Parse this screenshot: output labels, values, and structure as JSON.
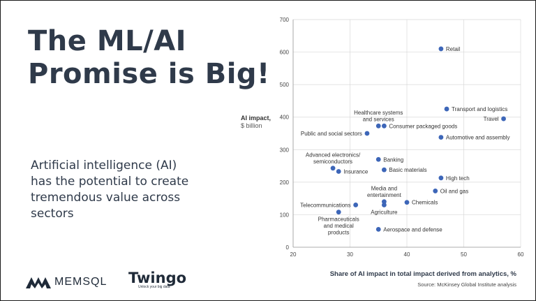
{
  "slide": {
    "title_lines": [
      "The ML/AI",
      "Promise is Big!"
    ],
    "body_lines": [
      "Artificial intelligence (AI)",
      "has the potential to create",
      "tremendous value across",
      "sectors"
    ],
    "source": "Source: McKinsey Global Institute analysis",
    "logos": {
      "memsql": "MEMSQL",
      "twingo": "Twingo",
      "twingo_tagline": "Unlock your big data"
    }
  },
  "chart_data": {
    "type": "scatter",
    "title": "",
    "xlabel": "Share of AI impact in total impact derived from analytics, %",
    "ylabel": "AI impact,",
    "ylabel_unit": "$ billion",
    "xlim": [
      20,
      60
    ],
    "ylim": [
      0,
      700
    ],
    "xticks": [
      20,
      30,
      40,
      50,
      60
    ],
    "yticks": [
      0,
      100,
      200,
      300,
      400,
      500,
      600,
      700
    ],
    "grid": true,
    "point_color": "#3d66b8",
    "points": [
      {
        "label": "Retail",
        "x": 46,
        "y": 610,
        "pos": "right"
      },
      {
        "label": "Transport and logistics",
        "x": 47,
        "y": 425,
        "pos": "right"
      },
      {
        "label": "Travel",
        "x": 57,
        "y": 395,
        "pos": "left"
      },
      {
        "label": "Healthcare systems\nand services",
        "x": 35,
        "y": 373,
        "pos": "above"
      },
      {
        "label": "Consumer packaged goods",
        "x": 36,
        "y": 373,
        "pos": "right"
      },
      {
        "label": "Public and social sectors",
        "x": 33,
        "y": 350,
        "pos": "left"
      },
      {
        "label": "Automotive and assembly",
        "x": 46,
        "y": 338,
        "pos": "right"
      },
      {
        "label": "Banking",
        "x": 35,
        "y": 270,
        "pos": "right"
      },
      {
        "label": "Advanced electronics/\nsemiconductors",
        "x": 27,
        "y": 243,
        "pos": "above"
      },
      {
        "label": "Insurance",
        "x": 28,
        "y": 233,
        "pos": "right"
      },
      {
        "label": "Basic materials",
        "x": 36,
        "y": 238,
        "pos": "right"
      },
      {
        "label": "High tech",
        "x": 46,
        "y": 213,
        "pos": "right"
      },
      {
        "label": "Oil and gas",
        "x": 45,
        "y": 173,
        "pos": "right"
      },
      {
        "label": "Media and\nentertainment",
        "x": 36,
        "y": 140,
        "pos": "above"
      },
      {
        "label": "Chemicals",
        "x": 40,
        "y": 138,
        "pos": "right"
      },
      {
        "label": "Agriculture",
        "x": 36,
        "y": 130,
        "pos": "below"
      },
      {
        "label": "Telecommunications",
        "x": 31,
        "y": 130,
        "pos": "left"
      },
      {
        "label": "Pharmaceuticals\nand medical\nproducts",
        "x": 28,
        "y": 108,
        "pos": "below"
      },
      {
        "label": "Aerospace and defense",
        "x": 35,
        "y": 55,
        "pos": "right"
      }
    ]
  }
}
